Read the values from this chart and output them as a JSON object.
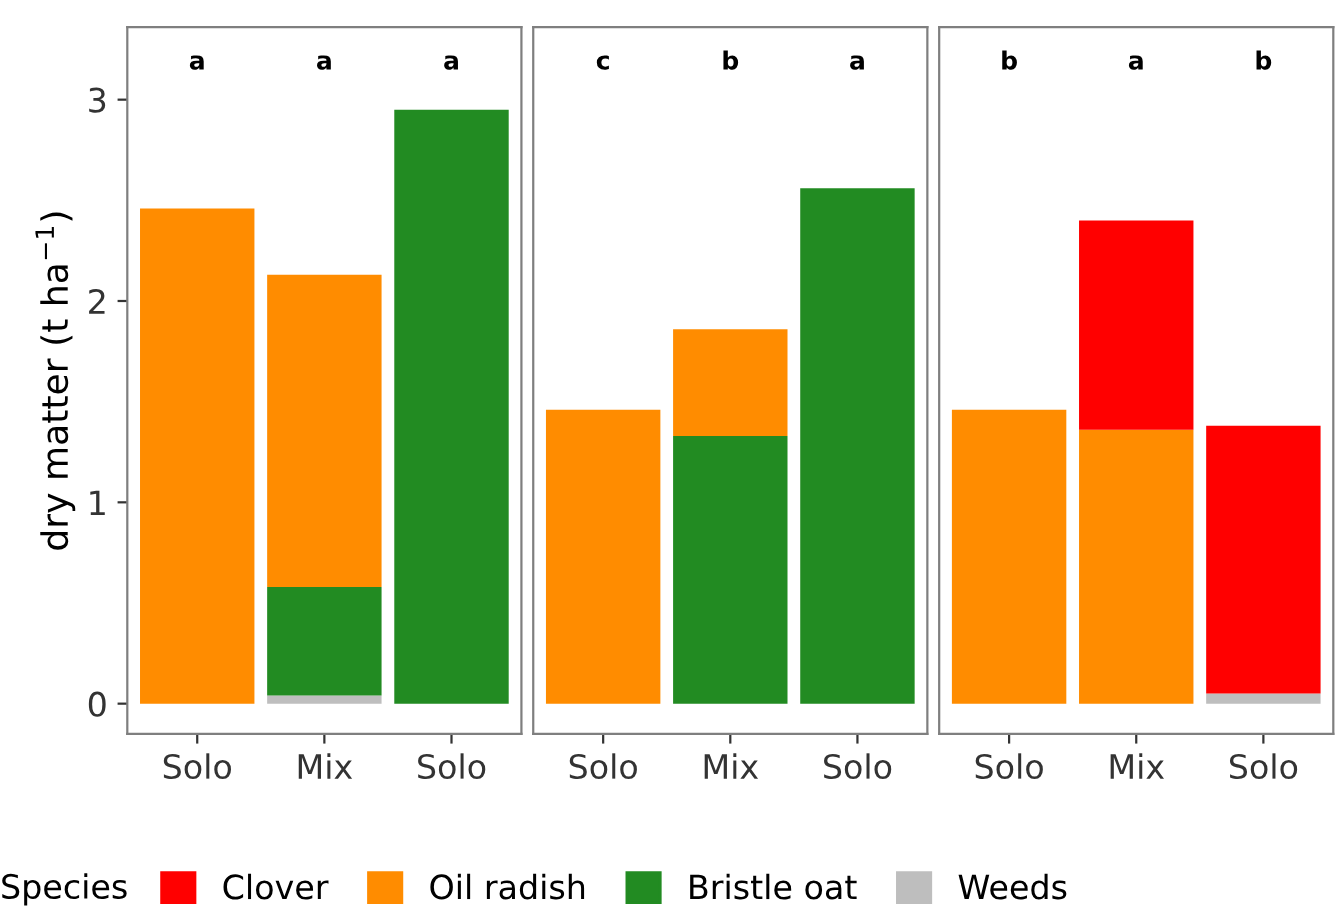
{
  "chart_data": [
    {
      "type": "bar",
      "stacked": true,
      "ylabel": "dry matter (t ha$^{−1}$)",
      "categories": [
        "Solo",
        "Mix",
        "Solo"
      ],
      "ylim": [
        -0.15,
        3.36
      ],
      "yticks": [
        0,
        1,
        2,
        3
      ],
      "grid": false,
      "legend": "bottom",
      "legend_title": "Species",
      "annotations": [
        "a",
        "a",
        "a"
      ],
      "series": [
        {
          "name": "Weeds",
          "color": "#bebebe",
          "values": [
            0,
            0.04,
            null
          ]
        },
        {
          "name": "Bristle oat",
          "color": "#228b22",
          "values": [
            0,
            0.54,
            2.95
          ]
        },
        {
          "name": "Oil radish",
          "color": "#ff8c00",
          "values": [
            2.46,
            1.55,
            0
          ]
        }
      ]
    },
    {
      "type": "bar",
      "stacked": true,
      "categories": [
        "Solo",
        "Mix",
        "Solo"
      ],
      "ylim": [
        -0.15,
        3.36
      ],
      "yticks": [
        0,
        1,
        2,
        3
      ],
      "grid": false,
      "tick_labels": "x",
      "annotations": [
        "c",
        "b",
        "a"
      ],
      "series": [
        {
          "name": "Bristle oat",
          "color": "#228b22",
          "values": [
            0,
            1.33,
            2.56
          ]
        },
        {
          "name": "Oil radish",
          "color": "#ff8c00",
          "values": [
            1.46,
            0.53,
            0
          ]
        }
      ]
    },
    {
      "type": "bar",
      "stacked": true,
      "categories": [
        "Solo",
        "Mix",
        "Solo"
      ],
      "ylim": [
        -0.15,
        3.36
      ],
      "yticks": [
        0,
        1,
        2,
        3
      ],
      "grid": false,
      "tick_labels": "x",
      "annotations": [
        "b",
        "a",
        "b"
      ],
      "series": [
        {
          "name": "Weeds",
          "color": "#bebebe",
          "values": [
            0,
            0,
            0.05
          ]
        },
        {
          "name": "Oil radish",
          "color": "#ff8c00",
          "values": [
            1.46,
            1.36,
            0
          ]
        },
        {
          "name": "Clover",
          "color": "#ff0000",
          "values": [
            0,
            1.04,
            1.33
          ]
        }
      ]
    }
  ]
}
